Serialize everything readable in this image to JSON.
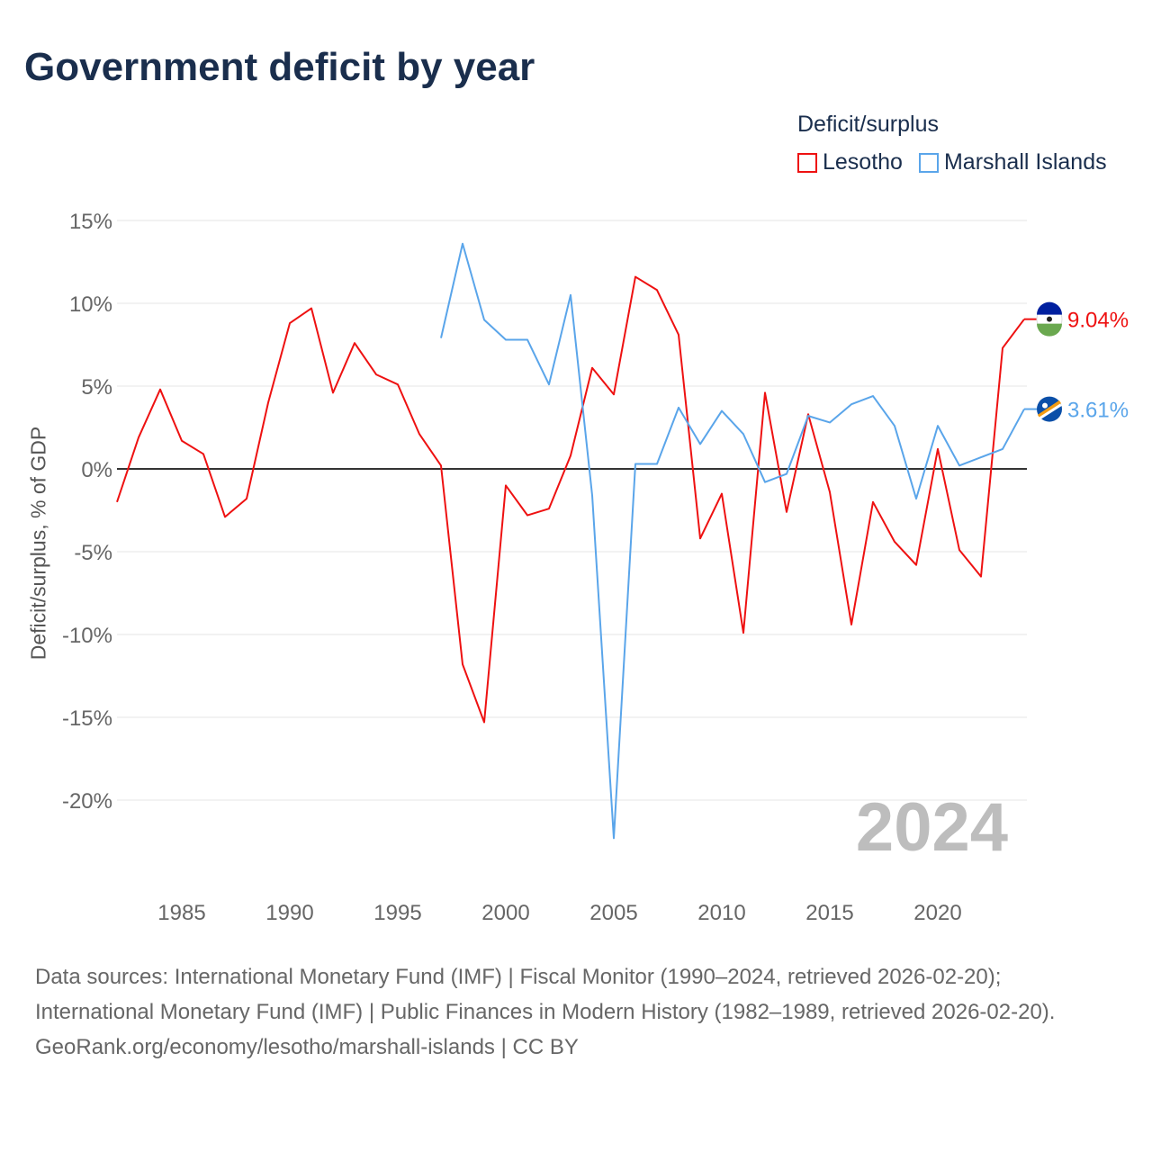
{
  "title": "Government deficit by year",
  "legend_title": "Deficit/surplus",
  "year_label": "2024",
  "footer": {
    "sources": "Data sources: International Monetary Fund (IMF) | Fiscal Monitor (1990–2024, retrieved 2026-02-20); International Monetary Fund (IMF) | Public Finances in Modern History (1982–1989, retrieved 2026-02-20).",
    "credit": "GeoRank.org/economy/lesotho/marshall-islands | CC BY"
  },
  "chart_data": {
    "type": "line",
    "title": "Government deficit by year",
    "xlabel": "",
    "ylabel": "Deficit/surplus, % of GDP",
    "xlim": [
      1982,
      2024
    ],
    "ylim": [
      -25,
      16
    ],
    "xticks": [
      1985,
      1990,
      1995,
      2000,
      2005,
      2010,
      2015,
      2020
    ],
    "yticks": [
      15,
      10,
      5,
      0,
      -5,
      -10,
      -15,
      -20
    ],
    "ytick_labels": [
      "15%",
      "10%",
      "5%",
      "0%",
      "-5%",
      "-10%",
      "-15%",
      "-20%"
    ],
    "grid": true,
    "legend_position": "top-right",
    "series": [
      {
        "name": "Lesotho",
        "color": "#ee1111",
        "end_label": "9.04%",
        "x": [
          1982,
          1983,
          1984,
          1985,
          1986,
          1987,
          1988,
          1989,
          1990,
          1991,
          1992,
          1993,
          1994,
          1995,
          1996,
          1997,
          1998,
          1999,
          2000,
          2001,
          2002,
          2003,
          2004,
          2005,
          2006,
          2007,
          2008,
          2009,
          2010,
          2011,
          2012,
          2013,
          2014,
          2015,
          2016,
          2017,
          2018,
          2019,
          2020,
          2021,
          2022,
          2023,
          2024
        ],
        "values": [
          -2.0,
          1.9,
          4.8,
          1.7,
          0.9,
          -2.9,
          -1.8,
          4.0,
          8.8,
          9.7,
          4.6,
          7.6,
          5.7,
          5.1,
          2.1,
          0.2,
          -11.8,
          -15.3,
          -1.0,
          -2.8,
          -2.4,
          0.8,
          6.1,
          4.5,
          11.6,
          10.8,
          8.1,
          -4.2,
          -1.5,
          -9.9,
          4.6,
          -2.6,
          3.3,
          -1.4,
          -9.4,
          -2.0,
          -4.4,
          -5.8,
          1.2,
          -4.9,
          -6.5,
          7.3,
          9.04
        ]
      },
      {
        "name": "Marshall Islands",
        "color": "#5aa5ea",
        "end_label": "3.61%",
        "x": [
          1997,
          1998,
          1999,
          2000,
          2001,
          2002,
          2003,
          2004,
          2005,
          2006,
          2007,
          2008,
          2009,
          2010,
          2011,
          2012,
          2013,
          2014,
          2015,
          2016,
          2017,
          2018,
          2019,
          2020,
          2021,
          2022,
          2023,
          2024
        ],
        "values": [
          7.9,
          13.6,
          9.0,
          7.8,
          7.8,
          5.1,
          10.5,
          -1.6,
          -22.3,
          0.3,
          0.3,
          3.7,
          1.5,
          3.5,
          2.1,
          -0.8,
          -0.3,
          3.2,
          2.8,
          3.9,
          4.4,
          2.6,
          -1.8,
          2.6,
          0.2,
          0.7,
          1.2,
          3.61
        ]
      }
    ]
  }
}
